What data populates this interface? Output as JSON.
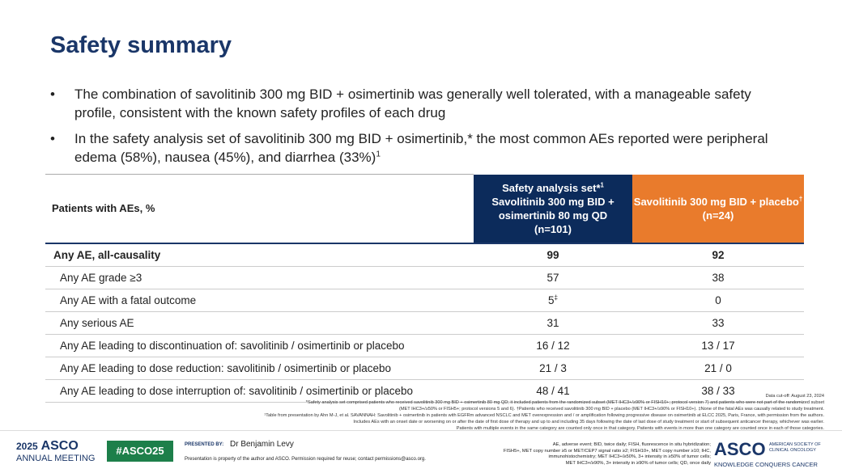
{
  "header": {
    "title": "Safety summary"
  },
  "bullets": [
    {
      "text": "The combination of savolitinib 300 mg BID + osimertinib was generally well tolerated, with a manageable safety profile, consistent with the known safety profiles of each drug"
    },
    {
      "text": "In the safety analysis set of savolitinib 300 mg BID + osimertinib,* the most common AEs reported were peripheral edema (58%), nausea (45%), and diarrhea (33%)",
      "sup": "1"
    }
  ],
  "table": {
    "header": {
      "label": "Patients with AEs, %",
      "col1": {
        "line1": "Safety analysis set*",
        "sup": "1",
        "line2": "Savolitinib 300 mg BID + osimertinib 80 mg QD",
        "line3": "(n=101)"
      },
      "col2": {
        "line1": "Savolitinib 300 mg BID + placebo",
        "sup": "†",
        "line2": "(n=24)"
      }
    },
    "rows": [
      [
        "Any AE, all-causality",
        "99",
        "92"
      ],
      [
        "Any AE grade ≥3",
        "57",
        "38"
      ],
      [
        "Any AE with a fatal outcome",
        "5",
        "0"
      ],
      [
        "Any serious AE",
        "31",
        "33"
      ],
      [
        "Any AE leading to discontinuation of: savolitinib / osimertinib or placebo",
        "16 / 12",
        "13 / 17"
      ],
      [
        "Any AE leading to dose reduction: savolitinib / osimertinib or placebo",
        "21 / 3",
        "21 / 0"
      ],
      [
        "Any AE leading to dose interruption of: savolitinib / osimertinib or placebo",
        "48 / 41",
        "38 / 33"
      ]
    ],
    "fatal_sup": "‡"
  },
  "footnotes": [
    "Data cut-off: August 23, 2024",
    "*Safety analysis set comprised patients who received savolitinib 300 mg BID + osimertinib 80 mg QD; it included patients from the randomized subset (MET IHC3+/≥90% or FISH10+; protocol version 7) and patients who were not part of the randomized subset",
    "(MET IHC3+/≥50% or FISH5+; protocol versions 5 and 6). †Patients who received savolitinib 300 mg BID + placebo (MET IHC3+/≥90% or FISH10+). ‡None of the fatal AEs was causally related to study treatment.",
    "¹Table from presentation by Ahn M-J, et al. SAVANNAH: Savolitinib + osimertinib in patients with EGFRm advanced NSCLC and MET overexpression and / or amplification following progressive disease on osimertinib at ELCC 2025, Paris, France, with permission from the authors.",
    "Includes AEs with an onset date or worsening on or after the date of first dose of therapy and up to and including 35 days following the date of last dose of study treatment or start of subsequent anticancer therapy, whichever was earlier.",
    "Patients with multiple events in the same category are counted only once in that category. Patients with events in more than one category are counted once in each of those categories."
  ],
  "footer": {
    "meeting_year": "2025",
    "meeting_org": "ASCO",
    "meeting_label": "ANNUAL MEETING",
    "hashtag": "#ASCO25",
    "presented_by": "PRESENTED BY:",
    "presenter": "Dr Benjamin Levy",
    "notice": "Presentation is property of the author and ASCO. Permission required for reuse; contact permissions@asco.org.",
    "abbreviations": [
      "AE, adverse event; BID, twice daily; FISH, fluorescence in situ hybridization;",
      "FISH5+, MET copy number ≥5 or MET/CEP7 signal ratio ≥2; FISH10+, MET copy number ≥10; IHC,",
      "immunohistochemistry; MET IHC3+/≥50%, 3+ intensity in ≥50% of tumor cells;",
      "MET IHC3+/≥90%, 3+ intensity in ≥90% of tumor cells; QD, once daily"
    ],
    "logo": "ASCO",
    "logo_line1": "AMERICAN SOCIETY OF",
    "logo_line2": "CLINICAL ONCOLOGY",
    "tagline": "KNOWLEDGE CONQUERS CANCER"
  }
}
